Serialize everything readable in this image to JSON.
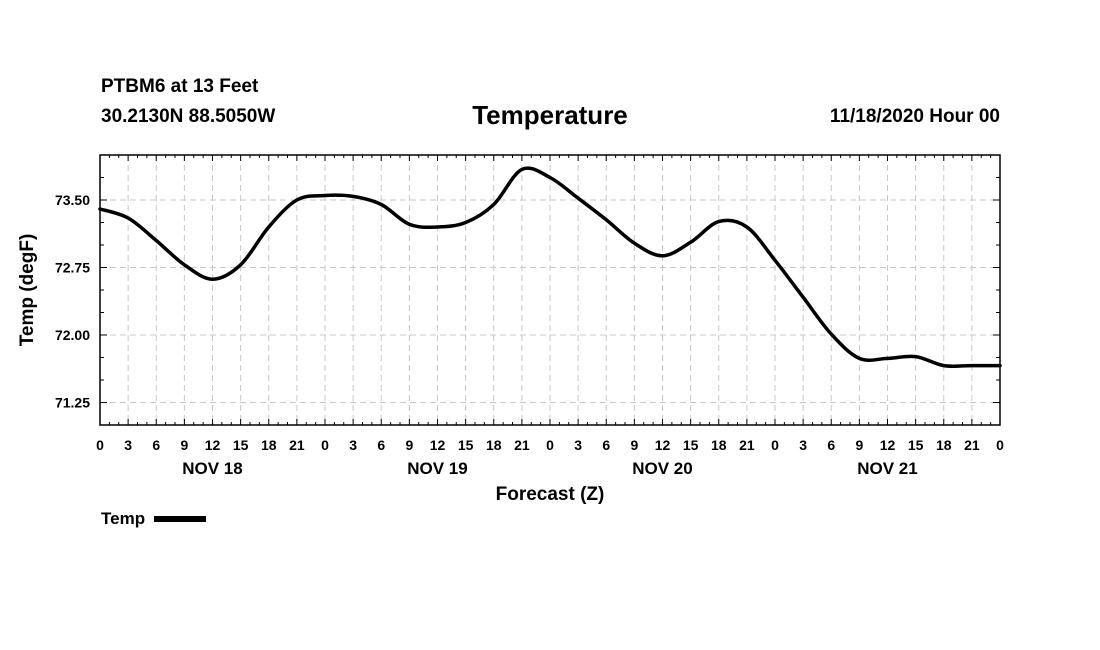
{
  "header": {
    "station": "PTBM6 at 13 Feet",
    "coords": "30.2130N 88.5050W",
    "title": "Temperature",
    "datetime": "11/18/2020 Hour 00"
  },
  "chart_data": {
    "type": "line",
    "title": "Temperature",
    "xlabel": "Forecast (Z)",
    "ylabel": "Temp (degF)",
    "xlim": [
      0,
      96
    ],
    "ylim": [
      71.0,
      74.0
    ],
    "yticks": [
      71.25,
      72.0,
      72.75,
      73.5
    ],
    "ytick_labels": [
      "71.25",
      "72.00",
      "72.75",
      "73.50"
    ],
    "xtick_step_hours": 3,
    "xtick_labels": [
      "0",
      "3",
      "6",
      "9",
      "12",
      "15",
      "18",
      "21",
      "0",
      "3",
      "6",
      "9",
      "12",
      "15",
      "18",
      "21",
      "0",
      "3",
      "6",
      "9",
      "12",
      "15",
      "18",
      "21",
      "0",
      "3",
      "6",
      "9",
      "12",
      "15",
      "18",
      "21",
      "0"
    ],
    "day_labels": [
      {
        "hour": 12,
        "label": "NOV 18"
      },
      {
        "hour": 36,
        "label": "NOV 19"
      },
      {
        "hour": 60,
        "label": "NOV 20"
      },
      {
        "hour": 84,
        "label": "NOV 21"
      }
    ],
    "grid": true,
    "legend_position": "bottom-left",
    "series": [
      {
        "name": "Temp",
        "color": "#000000",
        "x": [
          0,
          3,
          6,
          9,
          12,
          15,
          18,
          21,
          24,
          27,
          30,
          33,
          36,
          39,
          42,
          45,
          48,
          51,
          54,
          57,
          60,
          63,
          66,
          69,
          72,
          75,
          78,
          81,
          84,
          87,
          90,
          93,
          96
        ],
        "values": [
          73.4,
          73.3,
          73.05,
          72.78,
          72.62,
          72.78,
          73.2,
          73.5,
          73.55,
          73.54,
          73.45,
          73.23,
          73.2,
          73.25,
          73.45,
          73.84,
          73.75,
          73.52,
          73.28,
          73.02,
          72.88,
          73.03,
          73.26,
          73.2,
          72.83,
          72.42,
          72.01,
          71.74,
          71.74,
          71.76,
          71.66,
          71.66,
          71.66
        ]
      }
    ]
  },
  "legend": {
    "label": "Temp"
  }
}
